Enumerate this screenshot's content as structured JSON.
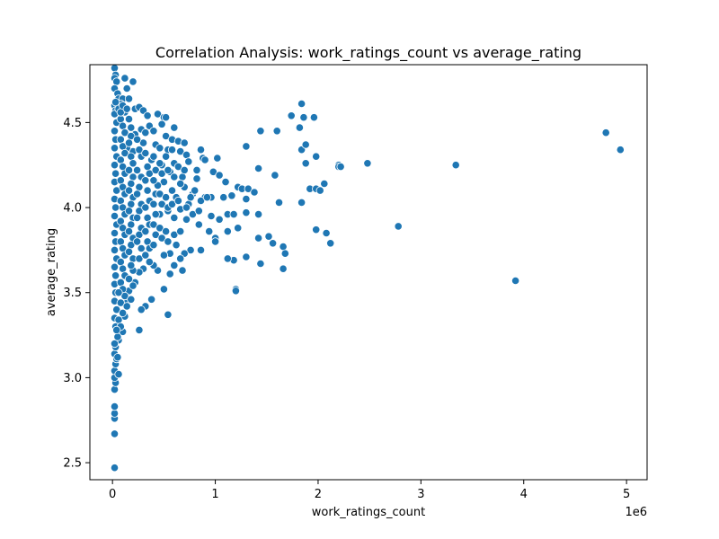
{
  "chart_data": {
    "type": "scatter",
    "title": "Correlation Analysis: work_ratings_count vs average_rating",
    "xlabel": "work_ratings_count",
    "ylabel": "average_rating",
    "x_offset_label": "1e6",
    "x_tick_values": [
      0,
      1,
      2,
      3,
      4,
      5
    ],
    "x_tick_labels": [
      "0",
      "1",
      "2",
      "3",
      "4",
      "5"
    ],
    "y_tick_values": [
      2.5,
      3.0,
      3.5,
      4.0,
      4.5
    ],
    "y_tick_labels": [
      "2.5",
      "3.0",
      "3.5",
      "4.0",
      "4.5"
    ],
    "xlim": [
      -0.22,
      5.2
    ],
    "ylim": [
      2.4,
      4.84
    ],
    "grid": false,
    "point_color": "#1f77b4",
    "point_edge_color": "#ffffff",
    "points": [
      [
        0.02,
        4.82
      ],
      [
        0.03,
        4.78
      ],
      [
        0.02,
        4.76
      ],
      [
        0.04,
        4.74
      ],
      [
        0.12,
        4.76
      ],
      [
        0.14,
        4.7
      ],
      [
        0.2,
        4.74
      ],
      [
        0.02,
        4.7
      ],
      [
        0.05,
        4.67
      ],
      [
        0.06,
        4.64
      ],
      [
        0.1,
        4.64
      ],
      [
        0.16,
        4.64
      ],
      [
        0.08,
        4.61
      ],
      [
        0.22,
        4.58
      ],
      [
        0.02,
        4.6
      ],
      [
        0.03,
        4.57
      ],
      [
        0.12,
        4.56
      ],
      [
        0.26,
        4.59
      ],
      [
        0.3,
        4.57
      ],
      [
        0.34,
        4.54
      ],
      [
        0.44,
        4.55
      ],
      [
        0.5,
        4.53
      ],
      [
        0.52,
        4.53
      ],
      [
        0.48,
        4.49
      ],
      [
        0.36,
        4.48
      ],
      [
        0.28,
        4.46
      ],
      [
        0.18,
        4.47
      ],
      [
        0.6,
        4.47
      ],
      [
        0.22,
        4.43
      ],
      [
        0.32,
        4.44
      ],
      [
        0.4,
        4.45
      ],
      [
        0.52,
        4.42
      ],
      [
        0.58,
        4.4
      ],
      [
        0.64,
        4.39
      ],
      [
        0.7,
        4.38
      ],
      [
        0.3,
        4.38
      ],
      [
        0.42,
        4.37
      ],
      [
        0.46,
        4.35
      ],
      [
        0.54,
        4.34
      ],
      [
        0.66,
        4.33
      ],
      [
        0.72,
        4.31
      ],
      [
        0.86,
        4.34
      ],
      [
        0.88,
        4.29
      ],
      [
        0.9,
        4.28
      ],
      [
        1.02,
        4.29
      ],
      [
        0.74,
        4.27
      ],
      [
        0.6,
        4.26
      ],
      [
        0.48,
        4.25
      ],
      [
        0.38,
        4.28
      ],
      [
        0.28,
        4.3
      ],
      [
        0.2,
        4.33
      ],
      [
        0.14,
        4.35
      ],
      [
        0.98,
        4.21
      ],
      [
        1.04,
        4.19
      ],
      [
        0.82,
        4.17
      ],
      [
        0.68,
        4.18
      ],
      [
        0.56,
        4.21
      ],
      [
        0.5,
        4.15
      ],
      [
        0.44,
        4.13
      ],
      [
        0.58,
        4.1
      ],
      [
        0.7,
        4.12
      ],
      [
        0.78,
        4.08
      ],
      [
        0.9,
        4.06
      ],
      [
        0.96,
        4.06
      ],
      [
        1.08,
        4.06
      ],
      [
        1.1,
        4.15
      ],
      [
        1.22,
        4.12
      ],
      [
        1.26,
        4.11
      ],
      [
        1.32,
        4.11
      ],
      [
        1.3,
        4.05
      ],
      [
        1.38,
        4.09
      ],
      [
        1.16,
        4.07
      ],
      [
        0.74,
        4.02
      ],
      [
        0.66,
        3.99
      ],
      [
        0.54,
        3.98
      ],
      [
        0.46,
        3.96
      ],
      [
        0.6,
        3.94
      ],
      [
        0.72,
        3.93
      ],
      [
        0.84,
        3.9
      ],
      [
        0.96,
        3.95
      ],
      [
        1.04,
        3.93
      ],
      [
        1.12,
        3.96
      ],
      [
        1.18,
        3.96
      ],
      [
        1.3,
        3.97
      ],
      [
        1.42,
        3.96
      ],
      [
        1.0,
        3.82
      ],
      [
        1.0,
        3.8
      ],
      [
        1.12,
        3.86
      ],
      [
        1.22,
        3.88
      ],
      [
        1.42,
        3.82
      ],
      [
        1.52,
        3.83
      ],
      [
        1.56,
        3.79
      ],
      [
        1.66,
        3.77
      ],
      [
        1.68,
        3.73
      ],
      [
        1.3,
        3.71
      ],
      [
        1.18,
        3.69
      ],
      [
        1.12,
        3.7
      ],
      [
        0.86,
        3.75
      ],
      [
        0.76,
        3.75
      ],
      [
        0.7,
        3.73
      ],
      [
        0.66,
        3.7
      ],
      [
        0.56,
        3.73
      ],
      [
        0.5,
        3.72
      ],
      [
        0.6,
        3.66
      ],
      [
        0.68,
        3.63
      ],
      [
        0.56,
        3.61
      ],
      [
        0.44,
        3.63
      ],
      [
        0.4,
        3.66
      ],
      [
        0.36,
        3.68
      ],
      [
        0.3,
        3.64
      ],
      [
        0.26,
        3.62
      ],
      [
        0.2,
        3.63
      ],
      [
        0.22,
        3.56
      ],
      [
        0.16,
        3.51
      ],
      [
        0.5,
        3.52
      ],
      [
        0.32,
        3.42
      ],
      [
        0.28,
        3.4
      ],
      [
        0.38,
        3.46
      ],
      [
        0.54,
        3.37
      ],
      [
        0.14,
        3.44
      ],
      [
        0.12,
        3.36
      ],
      [
        0.26,
        3.28
      ],
      [
        0.1,
        3.27
      ],
      [
        0.06,
        3.22
      ],
      [
        1.2,
        3.52
      ],
      [
        1.2,
        3.51
      ],
      [
        1.44,
        3.67
      ],
      [
        1.66,
        3.64
      ],
      [
        1.74,
        4.54
      ],
      [
        1.82,
        4.47
      ],
      [
        1.84,
        4.61
      ],
      [
        1.86,
        4.53
      ],
      [
        1.96,
        4.53
      ],
      [
        1.84,
        4.34
      ],
      [
        1.88,
        4.37
      ],
      [
        1.98,
        4.3
      ],
      [
        1.88,
        4.26
      ],
      [
        1.92,
        4.11
      ],
      [
        1.98,
        4.11
      ],
      [
        2.02,
        4.1
      ],
      [
        2.06,
        4.14
      ],
      [
        1.84,
        4.03
      ],
      [
        1.44,
        4.45
      ],
      [
        1.6,
        4.45
      ],
      [
        1.3,
        4.36
      ],
      [
        1.42,
        4.23
      ],
      [
        1.58,
        4.19
      ],
      [
        1.62,
        4.03
      ],
      [
        1.98,
        3.87
      ],
      [
        2.08,
        3.85
      ],
      [
        2.12,
        3.79
      ],
      [
        2.2,
        4.25
      ],
      [
        2.2,
        4.24
      ],
      [
        2.22,
        4.24
      ],
      [
        2.48,
        4.26
      ],
      [
        2.78,
        3.89
      ],
      [
        3.34,
        4.25
      ],
      [
        3.92,
        3.57
      ],
      [
        4.8,
        4.44
      ],
      [
        4.94,
        4.34
      ],
      [
        0.02,
        2.47
      ],
      [
        0.02,
        2.67
      ],
      [
        0.02,
        2.76
      ],
      [
        0.02,
        2.79
      ],
      [
        0.02,
        2.83
      ],
      [
        0.02,
        2.93
      ],
      [
        0.03,
        2.97
      ],
      [
        0.02,
        3.0
      ],
      [
        0.02,
        3.04
      ],
      [
        0.03,
        3.08
      ],
      [
        0.04,
        3.11
      ],
      [
        0.02,
        3.14
      ],
      [
        0.03,
        3.18
      ],
      [
        0.02,
        3.2
      ],
      [
        0.05,
        3.24
      ],
      [
        0.03,
        3.3
      ],
      [
        0.02,
        3.35
      ],
      [
        0.04,
        3.4
      ],
      [
        0.02,
        3.45
      ],
      [
        0.03,
        3.5
      ],
      [
        0.02,
        3.55
      ],
      [
        0.03,
        3.6
      ],
      [
        0.02,
        3.65
      ],
      [
        0.04,
        3.7
      ],
      [
        0.02,
        3.75
      ],
      [
        0.03,
        3.8
      ],
      [
        0.02,
        3.85
      ],
      [
        0.04,
        3.9
      ],
      [
        0.02,
        3.95
      ],
      [
        0.03,
        4.0
      ],
      [
        0.02,
        4.05
      ],
      [
        0.04,
        4.1
      ],
      [
        0.02,
        4.15
      ],
      [
        0.03,
        4.2
      ],
      [
        0.02,
        4.25
      ],
      [
        0.04,
        4.3
      ],
      [
        0.02,
        4.35
      ],
      [
        0.03,
        4.4
      ],
      [
        0.02,
        4.45
      ],
      [
        0.04,
        4.5
      ],
      [
        0.02,
        4.55
      ],
      [
        0.03,
        4.62
      ],
      [
        0.08,
        4.52
      ],
      [
        0.1,
        4.48
      ],
      [
        0.12,
        4.44
      ],
      [
        0.08,
        4.4
      ],
      [
        0.1,
        4.36
      ],
      [
        0.12,
        4.32
      ],
      [
        0.08,
        4.28
      ],
      [
        0.1,
        4.24
      ],
      [
        0.12,
        4.2
      ],
      [
        0.08,
        4.16
      ],
      [
        0.1,
        4.12
      ],
      [
        0.12,
        4.08
      ],
      [
        0.08,
        4.04
      ],
      [
        0.1,
        4.0
      ],
      [
        0.12,
        3.96
      ],
      [
        0.08,
        3.92
      ],
      [
        0.1,
        3.88
      ],
      [
        0.12,
        3.84
      ],
      [
        0.08,
        3.8
      ],
      [
        0.1,
        3.76
      ],
      [
        0.12,
        3.72
      ],
      [
        0.08,
        3.68
      ],
      [
        0.1,
        3.64
      ],
      [
        0.12,
        3.6
      ],
      [
        0.08,
        3.56
      ],
      [
        0.1,
        3.52
      ],
      [
        0.12,
        3.48
      ],
      [
        0.08,
        3.44
      ],
      [
        0.18,
        4.42
      ],
      [
        0.16,
        4.38
      ],
      [
        0.18,
        4.3
      ],
      [
        0.2,
        4.26
      ],
      [
        0.16,
        4.22
      ],
      [
        0.2,
        4.18
      ],
      [
        0.18,
        4.14
      ],
      [
        0.16,
        4.1
      ],
      [
        0.2,
        4.06
      ],
      [
        0.18,
        4.02
      ],
      [
        0.16,
        3.98
      ],
      [
        0.2,
        3.94
      ],
      [
        0.18,
        3.9
      ],
      [
        0.16,
        3.86
      ],
      [
        0.2,
        3.82
      ],
      [
        0.18,
        3.78
      ],
      [
        0.16,
        3.74
      ],
      [
        0.2,
        3.7
      ],
      [
        0.18,
        3.66
      ],
      [
        0.16,
        3.58
      ],
      [
        0.2,
        3.54
      ],
      [
        0.24,
        4.4
      ],
      [
        0.26,
        4.34
      ],
      [
        0.24,
        4.22
      ],
      [
        0.28,
        4.18
      ],
      [
        0.26,
        4.12
      ],
      [
        0.24,
        4.08
      ],
      [
        0.28,
        4.02
      ],
      [
        0.26,
        3.98
      ],
      [
        0.24,
        3.94
      ],
      [
        0.28,
        3.88
      ],
      [
        0.26,
        3.84
      ],
      [
        0.24,
        3.8
      ],
      [
        0.28,
        3.76
      ],
      [
        0.26,
        3.7
      ],
      [
        0.32,
        4.32
      ],
      [
        0.34,
        4.24
      ],
      [
        0.36,
        4.2
      ],
      [
        0.32,
        4.16
      ],
      [
        0.34,
        4.1
      ],
      [
        0.36,
        4.04
      ],
      [
        0.32,
        4.0
      ],
      [
        0.34,
        3.94
      ],
      [
        0.36,
        3.9
      ],
      [
        0.32,
        3.86
      ],
      [
        0.34,
        3.8
      ],
      [
        0.36,
        3.76
      ],
      [
        0.32,
        3.72
      ],
      [
        0.4,
        4.3
      ],
      [
        0.42,
        4.22
      ],
      [
        0.4,
        4.16
      ],
      [
        0.42,
        4.08
      ],
      [
        0.4,
        4.02
      ],
      [
        0.42,
        3.96
      ],
      [
        0.4,
        3.9
      ],
      [
        0.42,
        3.84
      ],
      [
        0.4,
        3.78
      ],
      [
        0.46,
        4.26
      ],
      [
        0.48,
        4.2
      ],
      [
        0.46,
        4.08
      ],
      [
        0.48,
        4.02
      ],
      [
        0.46,
        3.88
      ],
      [
        0.48,
        3.82
      ],
      [
        0.52,
        4.3
      ],
      [
        0.54,
        4.22
      ],
      [
        0.52,
        4.06
      ],
      [
        0.54,
        4.0
      ],
      [
        0.52,
        3.86
      ],
      [
        0.54,
        3.8
      ],
      [
        0.58,
        4.34
      ],
      [
        0.6,
        4.18
      ],
      [
        0.62,
        4.06
      ],
      [
        0.58,
        4.02
      ],
      [
        0.6,
        3.84
      ],
      [
        0.62,
        3.78
      ],
      [
        0.64,
        4.24
      ],
      [
        0.66,
        4.14
      ],
      [
        0.64,
        4.04
      ],
      [
        0.66,
        3.86
      ],
      [
        0.7,
        4.22
      ],
      [
        0.72,
        4.0
      ],
      [
        0.76,
        4.06
      ],
      [
        0.78,
        3.96
      ],
      [
        0.8,
        4.1
      ],
      [
        0.82,
        4.22
      ],
      [
        0.84,
        3.98
      ],
      [
        0.86,
        4.04
      ],
      [
        0.92,
        4.06
      ],
      [
        0.94,
        3.86
      ],
      [
        0.06,
        4.58
      ],
      [
        0.08,
        4.56
      ],
      [
        0.1,
        4.6
      ],
      [
        0.14,
        4.58
      ],
      [
        0.16,
        4.52
      ],
      [
        0.06,
        3.34
      ],
      [
        0.08,
        3.3
      ],
      [
        0.1,
        3.38
      ],
      [
        0.14,
        3.42
      ],
      [
        0.18,
        3.46
      ],
      [
        0.06,
        3.5
      ],
      [
        0.04,
        3.28
      ],
      [
        0.05,
        3.12
      ],
      [
        0.06,
        3.02
      ]
    ]
  }
}
